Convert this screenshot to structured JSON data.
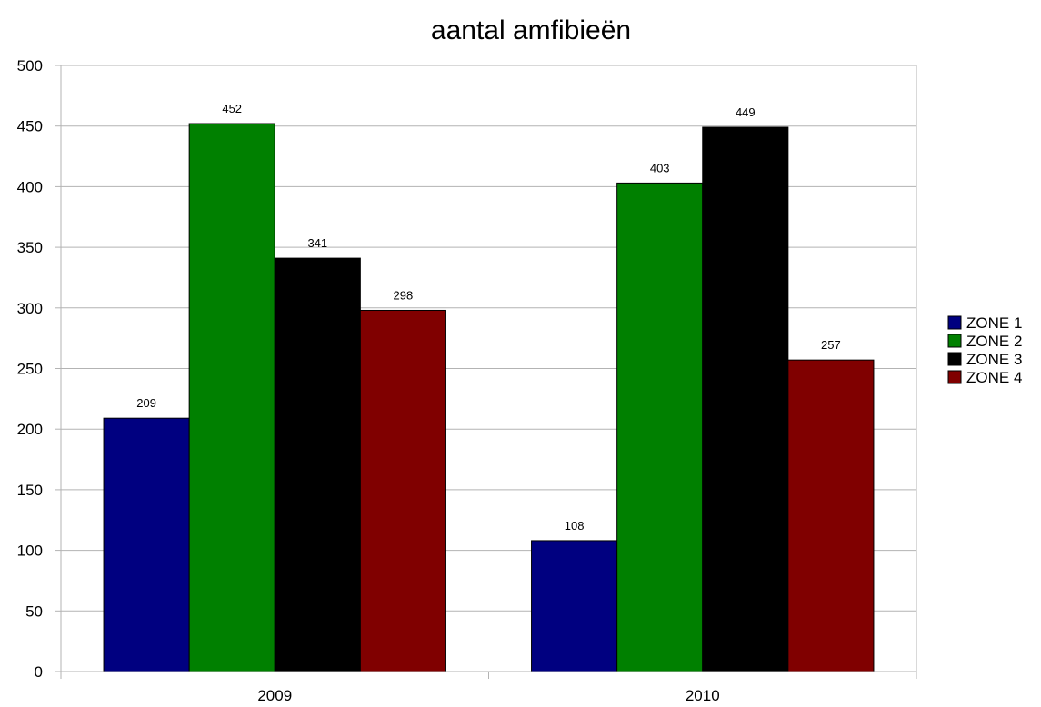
{
  "chart_data": {
    "type": "bar",
    "title": "aantal amfibieën",
    "xlabel": "",
    "ylabel": "",
    "categories": [
      "2009",
      "2010"
    ],
    "ylim": [
      0,
      500
    ],
    "yticks": [
      0,
      50,
      100,
      150,
      200,
      250,
      300,
      350,
      400,
      450,
      500
    ],
    "grid": true,
    "legend_position": "right",
    "show_data_labels": true,
    "series": [
      {
        "name": "ZONE 1",
        "color": "#000080",
        "values": [
          209,
          108
        ]
      },
      {
        "name": "ZONE 2",
        "color": "#008000",
        "values": [
          452,
          403
        ]
      },
      {
        "name": "ZONE 3",
        "color": "#000000",
        "values": [
          341,
          449
        ]
      },
      {
        "name": "ZONE 4",
        "color": "#800000",
        "values": [
          298,
          257
        ]
      }
    ]
  }
}
